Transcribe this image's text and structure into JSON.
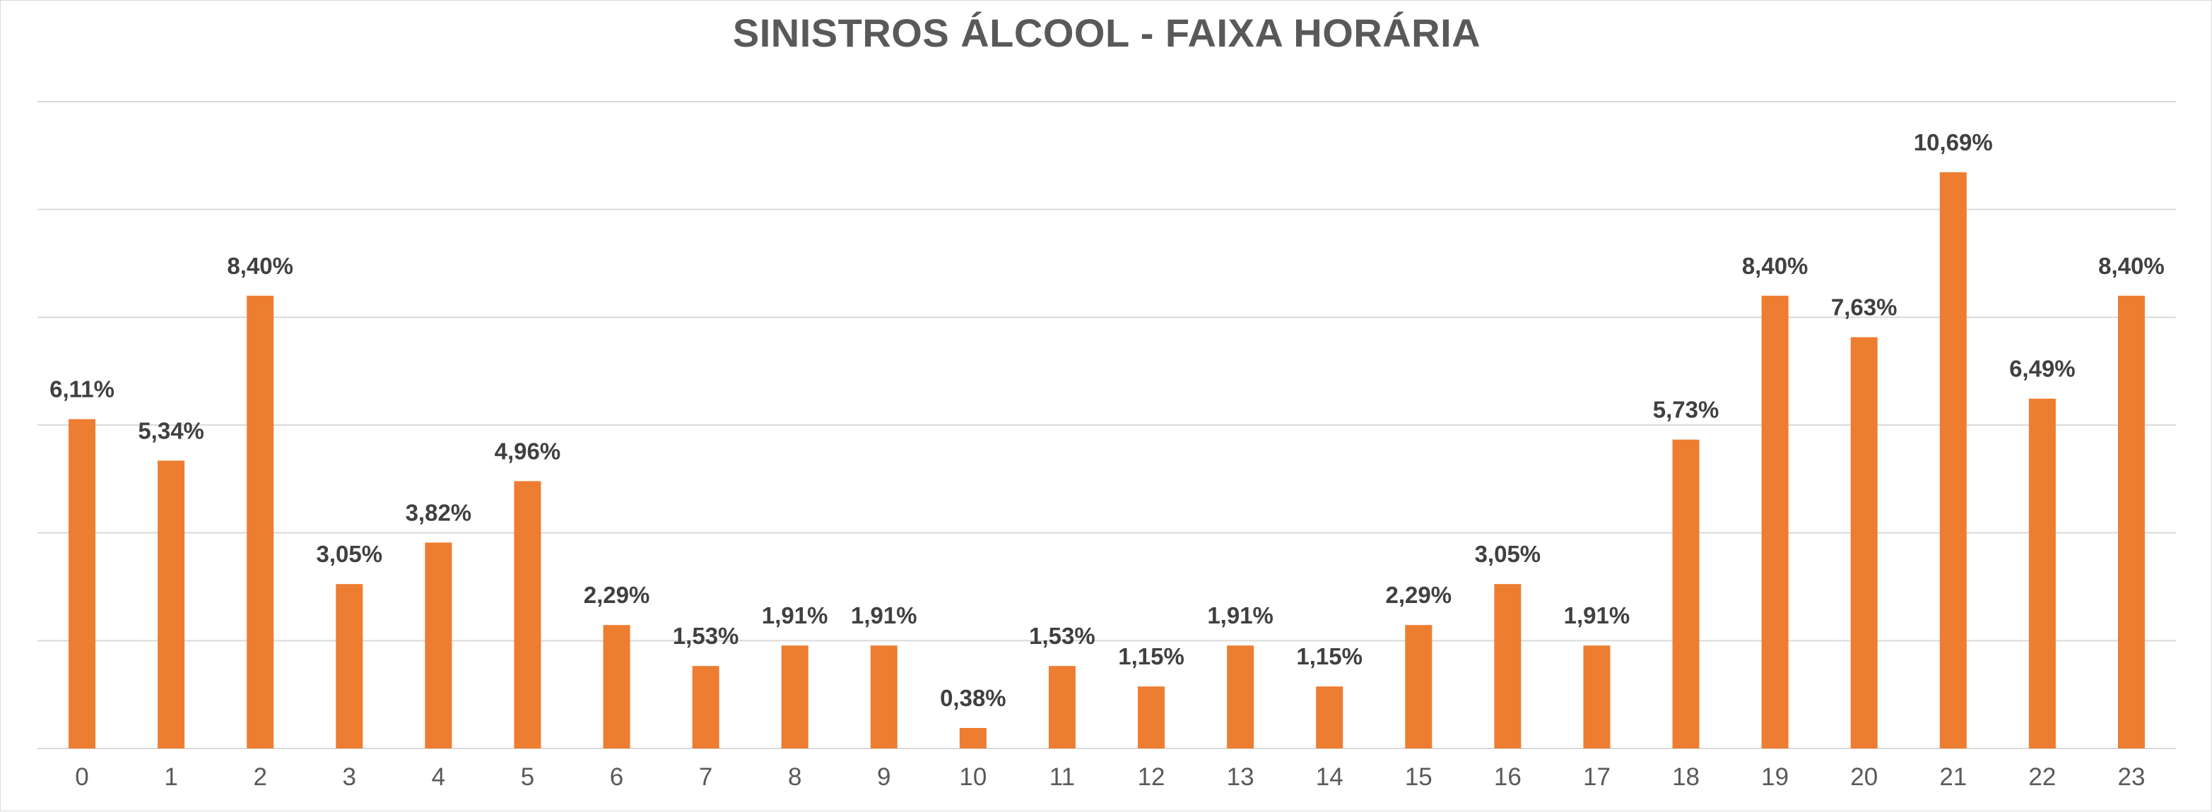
{
  "chart_data": {
    "type": "bar",
    "title": "SINISTROS ÁLCOOL - FAIXA HORÁRIA",
    "categories": [
      "0",
      "1",
      "2",
      "3",
      "4",
      "5",
      "6",
      "7",
      "8",
      "9",
      "10",
      "11",
      "12",
      "13",
      "14",
      "15",
      "16",
      "17",
      "18",
      "19",
      "20",
      "21",
      "22",
      "23"
    ],
    "series": [
      {
        "values": [
          6.11,
          5.34,
          8.4,
          3.05,
          3.82,
          4.96,
          2.29,
          1.53,
          1.91,
          1.91,
          0.38,
          1.53,
          1.15,
          1.91,
          1.15,
          2.29,
          3.05,
          1.91,
          5.73,
          8.4,
          7.63,
          10.69,
          6.49,
          8.4
        ],
        "labels": [
          "6,11%",
          "5,34%",
          "8,40%",
          "3,05%",
          "3,82%",
          "4,96%",
          "2,29%",
          "1,53%",
          "1,91%",
          "1,91%",
          "0,38%",
          "1,53%",
          "1,15%",
          "1,91%",
          "1,15%",
          "2,29%",
          "3,05%",
          "1,91%",
          "5,73%",
          "8,40%",
          "7,63%",
          "10,69%",
          "6,49%",
          "8,40%"
        ]
      }
    ],
    "ylim": [
      0,
      12
    ],
    "grid": true,
    "bar_color": "#ed7d31"
  }
}
